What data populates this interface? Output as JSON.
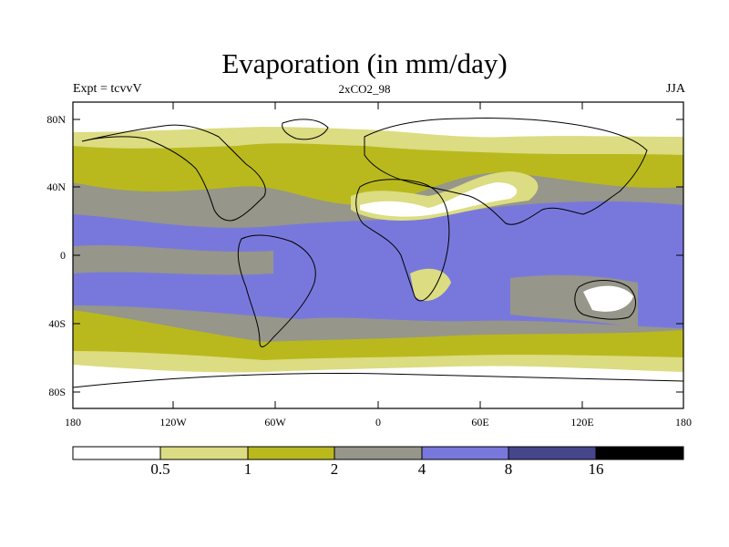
{
  "title": "Evaporation (in mm/day)",
  "experiment_label": "Expt = tcvvV",
  "run_label": "2xCO2_98",
  "season_label": "JJA",
  "y_ticks": [
    "80N",
    "40N",
    "0",
    "40S",
    "80S"
  ],
  "x_ticks": [
    "180",
    "120W",
    "60W",
    "0",
    "60E",
    "120E",
    "180"
  ],
  "colorbar": {
    "levels": [
      "0.5",
      "1",
      "2",
      "4",
      "8",
      "16"
    ],
    "colors": [
      "#ffffff",
      "#dcdc82",
      "#b9b91e",
      "#96968a",
      "#7878dc",
      "#46468c",
      "#000000"
    ]
  }
}
